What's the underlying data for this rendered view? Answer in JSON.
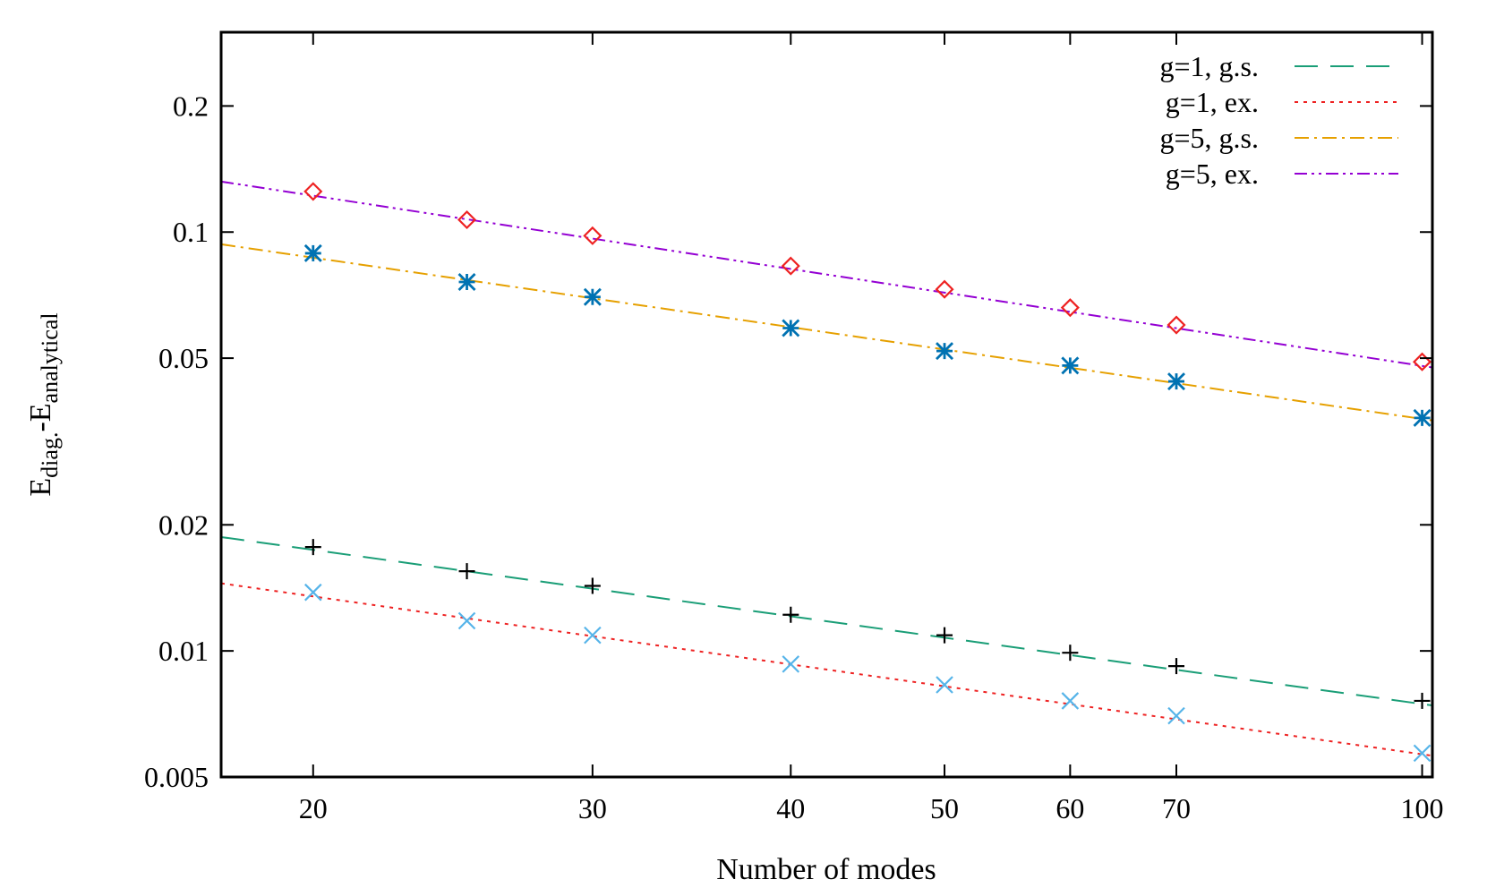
{
  "chart_data": {
    "type": "line",
    "xlabel": "Number of modes",
    "ylabel_main": "E",
    "ylabel_sub1": "diag.",
    "ylabel_mid": "-E",
    "ylabel_sub2": "analytical",
    "xscale": "log",
    "yscale": "log",
    "xlim": [
      17.5,
      101.5
    ],
    "ylim": [
      0.005,
      0.3
    ],
    "xticks": [
      20,
      30,
      40,
      50,
      60,
      70,
      100
    ],
    "xtick_labels": [
      "20",
      "30",
      "40",
      "50",
      "60",
      "70",
      "100"
    ],
    "yticks": [
      0.005,
      0.01,
      0.02,
      0.05,
      0.1,
      0.2
    ],
    "ytick_labels": [
      "0.005",
      "0.01",
      "0.02",
      "0.05",
      "0.1",
      "0.2"
    ],
    "grid": false,
    "legend_position": "top-right",
    "x": [
      20,
      25,
      30,
      40,
      50,
      60,
      70,
      100
    ],
    "series": [
      {
        "name": "g=1, g.s.",
        "color": "#1a9e77",
        "dash": "long-dash",
        "marker": "plus",
        "marker_color": "#000000",
        "points": [
          0.0177,
          0.0155,
          0.0143,
          0.0122,
          0.0109,
          0.0099,
          0.0092,
          0.0076
        ],
        "fit": [
          [
            17.5,
            0.0187
          ],
          [
            101.5,
            0.00741
          ]
        ]
      },
      {
        "name": "g=1, ex.",
        "color": "#ee2222",
        "dash": "dotted",
        "marker": "cross",
        "marker_color": "#56b4e9",
        "points": [
          0.0138,
          0.0118,
          0.0109,
          0.0093,
          0.0083,
          0.0076,
          0.007,
          0.0057
        ],
        "fit": [
          [
            17.5,
            0.0145
          ],
          [
            101.5,
            0.00562
          ]
        ]
      },
      {
        "name": "g=5, g.s.",
        "color": "#e6a000",
        "dash": "dash-dot",
        "marker": "asterisk",
        "marker_color": "#0072b2",
        "points": [
          0.089,
          0.076,
          0.07,
          0.059,
          0.052,
          0.048,
          0.044,
          0.036
        ],
        "fit": [
          [
            17.5,
            0.0935
          ],
          [
            101.5,
            0.0355
          ]
        ]
      },
      {
        "name": "g=5, ex.",
        "color": "#9400d3",
        "dash": "dash-dot-dot",
        "marker": "diamond",
        "marker_color": "#ee2222",
        "points": [
          0.125,
          0.107,
          0.098,
          0.083,
          0.073,
          0.066,
          0.06,
          0.049
        ],
        "fit": [
          [
            17.5,
            0.132
          ],
          [
            101.5,
            0.0475
          ]
        ]
      }
    ]
  }
}
